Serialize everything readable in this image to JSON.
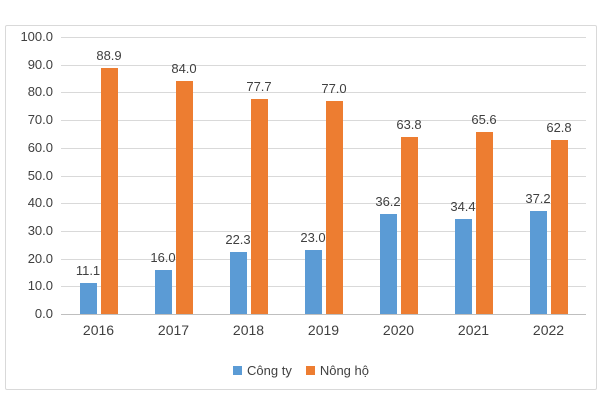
{
  "chart_data": {
    "type": "bar",
    "title": "",
    "xlabel": "",
    "ylabel": "",
    "categories": [
      "2016",
      "2017",
      "2018",
      "2019",
      "2020",
      "2021",
      "2022"
    ],
    "series": [
      {
        "name": "Công ty",
        "color": "#5b9bd5",
        "values": [
          11.1,
          16.0,
          22.3,
          23.0,
          36.2,
          34.4,
          37.2
        ]
      },
      {
        "name": "Nông hộ",
        "color": "#ed7d31",
        "values": [
          88.9,
          84.0,
          77.7,
          77.0,
          63.8,
          65.6,
          62.8
        ]
      }
    ],
    "ylim": [
      0,
      100
    ],
    "ytick_step": 10,
    "ytick_decimals": 1,
    "data_label_decimals": 1,
    "grid": true,
    "legend_position": "bottom",
    "colors": {
      "gridline": "#d9d9d9",
      "axis_line": "#bfbfbf",
      "text": "#404040",
      "data_label_text": "#3f3f3f",
      "chart_border": "#d9d9d9",
      "background": "#ffffff"
    }
  }
}
